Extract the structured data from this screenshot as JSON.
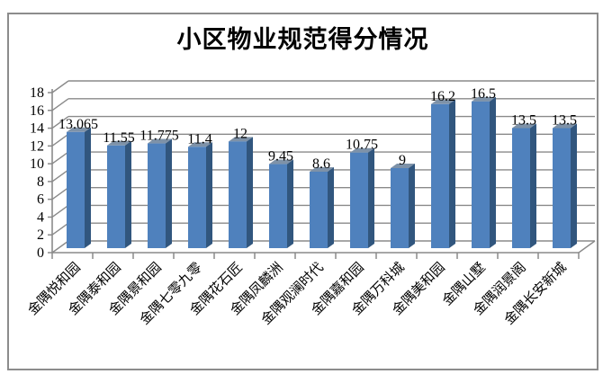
{
  "chart_data": {
    "type": "bar",
    "style": "3d-column",
    "title": "小区物业规范得分情况",
    "categories": [
      "金隅悦和园",
      "金隅泰和园",
      "金隅景和园",
      "金隅七零九零",
      "金隅花石匠",
      "金隅凤麟洲",
      "金隅观澜时代",
      "金隅嘉和园",
      "金隅万科城",
      "金隅美和园",
      "金隅山墅",
      "金隅润景阁",
      "金隅长安新城"
    ],
    "values": [
      13.065,
      11.55,
      11.775,
      11.4,
      12,
      9.45,
      8.6,
      10.75,
      9,
      16.2,
      16.5,
      13.5,
      13.5
    ],
    "data_labels": [
      "13.065",
      "11.55",
      "11.775",
      "11.4",
      "12",
      "9.45",
      "8.6",
      "10.75",
      "9",
      "16.2",
      "16.5",
      "13.5",
      "13.5"
    ],
    "ytick_labels": [
      "0",
      "2",
      "4",
      "6",
      "8",
      "10",
      "12",
      "14",
      "16",
      "18"
    ],
    "xlabel": "",
    "ylabel": "",
    "ylim": [
      0,
      18
    ],
    "ytick_step": 2,
    "grid": true,
    "legend": "none",
    "colors": {
      "bar_front": "#4f81bd",
      "bar_side": "#31567e",
      "bar_top": "#7e92a8",
      "gridline": "#8a8a8a",
      "axis": "#8a8a8a",
      "label_text": "#000000",
      "frame_border": "#8c8c8c",
      "background": "#ffffff"
    }
  }
}
